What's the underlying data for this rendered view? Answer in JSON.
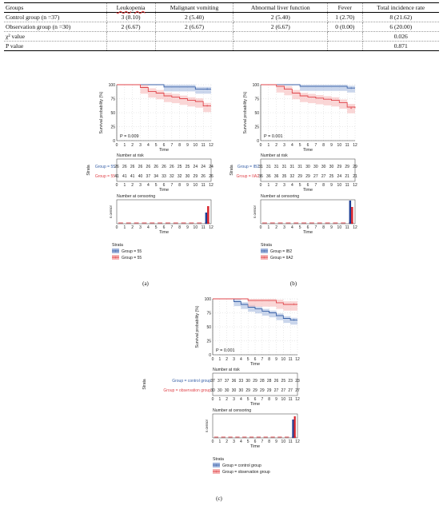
{
  "table": {
    "headers": [
      "Groups",
      "Leukopenia",
      "Malignant vomiting",
      "Abnormal liver function",
      "Fever",
      "Total incidence rate"
    ],
    "rows": [
      [
        "Control group (n =37)",
        "3 (8.10)",
        "2 (5.40)",
        "2 (5.40)",
        "1 (2.70)",
        "8 (21.62)"
      ],
      [
        "Observation group (n =30)",
        "2 (6.67)",
        "2 (6.67)",
        "2 (6.67)",
        "0 (0.00)",
        "6 (20.00)"
      ],
      [
        "χ² value",
        "",
        "",
        "",
        "",
        "0.026"
      ],
      [
        "P value",
        "",
        "",
        "",
        "",
        "0.871"
      ]
    ]
  },
  "common": {
    "ylabel": "Survival probability (%)",
    "xlabel": "Time",
    "yticks": [
      "0",
      "25",
      "50",
      "75",
      "100"
    ],
    "xticks": [
      "0",
      "1",
      "2",
      "3",
      "4",
      "5",
      "6",
      "7",
      "8",
      "9",
      "10",
      "11",
      "12"
    ],
    "risk_title": "Number at risk",
    "cens_title": "Number at censoring",
    "strata_axis": "Strata",
    "cens_ylabel": "n.censor",
    "legend_title": "Strata",
    "colors": {
      "blue": "#3a62a8",
      "red": "#e0454b",
      "blue_band": "#9fb4dc",
      "red_band": "#f5b4b4",
      "bar_blue": "#1c3f95",
      "bar_red": "#d7232b"
    }
  },
  "chart_data": [
    {
      "type": "line",
      "panel_label": "(a)",
      "p_value": "P = 0.009",
      "x": [
        0,
        1,
        2,
        3,
        4,
        5,
        6,
        7,
        8,
        9,
        10,
        11,
        12
      ],
      "ylim": [
        0,
        100
      ],
      "xlim": [
        0,
        12
      ],
      "series": [
        {
          "name": "Group = 55",
          "color": "blue",
          "survival": [
            100,
            100,
            100,
            100,
            100,
            100,
            96,
            96,
            96,
            96,
            92,
            92,
            92
          ]
        },
        {
          "name": "Group = 55",
          "color": "red",
          "survival": [
            100,
            100,
            100,
            95,
            88,
            85,
            80,
            78,
            75,
            72,
            70,
            62,
            62
          ]
        }
      ],
      "risk_groups": [
        "Group = 55",
        "Group = 55"
      ],
      "risk_rows": [
        [
          "26",
          "26",
          "26",
          "26",
          "26",
          "26",
          "26",
          "26",
          "25",
          "25",
          "24",
          "24",
          "24"
        ],
        [
          "41",
          "41",
          "41",
          "40",
          "37",
          "34",
          "33",
          "32",
          "32",
          "30",
          "29",
          "26",
          "26"
        ]
      ],
      "censor_counts": [
        [
          0,
          0,
          0,
          0,
          0,
          0,
          0,
          0,
          0,
          0,
          0,
          14,
          14
        ],
        [
          0,
          0,
          0,
          0,
          0,
          0,
          0,
          0,
          0,
          0,
          0,
          22,
          22
        ]
      ],
      "legend": [
        "Group = 55",
        "Group = 55"
      ]
    },
    {
      "type": "line",
      "panel_label": "(b)",
      "p_value": "P = 0.001",
      "x": [
        0,
        1,
        2,
        3,
        4,
        5,
        6,
        7,
        8,
        9,
        10,
        11,
        12
      ],
      "ylim": [
        0,
        100
      ],
      "xlim": [
        0,
        12
      ],
      "series": [
        {
          "name": "Group = IB2",
          "color": "blue",
          "survival": [
            100,
            100,
            100,
            100,
            100,
            97,
            97,
            97,
            97,
            97,
            97,
            94,
            94
          ]
        },
        {
          "name": "Group = IIA2",
          "color": "red",
          "survival": [
            100,
            100,
            97,
            92,
            85,
            80,
            78,
            76,
            74,
            72,
            68,
            60,
            58
          ]
        }
      ],
      "risk_groups": [
        "Group = IB2",
        "Group = IIA2"
      ],
      "risk_rows": [
        [
          "31",
          "31",
          "31",
          "31",
          "31",
          "31",
          "30",
          "30",
          "30",
          "30",
          "29",
          "29",
          "29"
        ],
        [
          "36",
          "36",
          "36",
          "35",
          "32",
          "29",
          "29",
          "27",
          "27",
          "25",
          "24",
          "21",
          "21"
        ]
      ],
      "censor_counts": [
        [
          0,
          0,
          0,
          0,
          0,
          0,
          0,
          0,
          0,
          0,
          0,
          29,
          29
        ],
        [
          0,
          0,
          0,
          0,
          0,
          0,
          0,
          0,
          0,
          0,
          0,
          21,
          21
        ]
      ],
      "legend": [
        "Group = IB2",
        "Group = IIA2"
      ]
    },
    {
      "type": "line",
      "panel_label": "(c)",
      "p_value": "P = 0.001",
      "x": [
        0,
        1,
        2,
        3,
        4,
        5,
        6,
        7,
        8,
        9,
        10,
        11,
        12
      ],
      "ylim": [
        0,
        100
      ],
      "xlim": [
        0,
        12
      ],
      "series": [
        {
          "name": "Group = control group",
          "color": "blue",
          "survival": [
            100,
            100,
            100,
            95,
            90,
            85,
            82,
            78,
            75,
            70,
            65,
            62,
            62
          ]
        },
        {
          "name": "Group = observation group",
          "color": "red",
          "survival": [
            100,
            100,
            100,
            100,
            100,
            97,
            97,
            97,
            97,
            93,
            90,
            90,
            90
          ]
        }
      ],
      "risk_groups": [
        "Group = control group",
        "Group = observation group"
      ],
      "risk_rows": [
        [
          "37",
          "37",
          "37",
          "36",
          "33",
          "30",
          "29",
          "28",
          "28",
          "26",
          "25",
          "23",
          "23"
        ],
        [
          "30",
          "30",
          "30",
          "30",
          "30",
          "29",
          "29",
          "29",
          "29",
          "27",
          "27",
          "27",
          "27"
        ]
      ],
      "censor_counts": [
        [
          0,
          0,
          0,
          0,
          0,
          0,
          0,
          0,
          0,
          0,
          0,
          23,
          23
        ],
        [
          0,
          0,
          0,
          0,
          0,
          0,
          0,
          0,
          0,
          0,
          0,
          27,
          27
        ]
      ],
      "legend": [
        "Group = control group",
        "Group = observation group"
      ]
    }
  ]
}
